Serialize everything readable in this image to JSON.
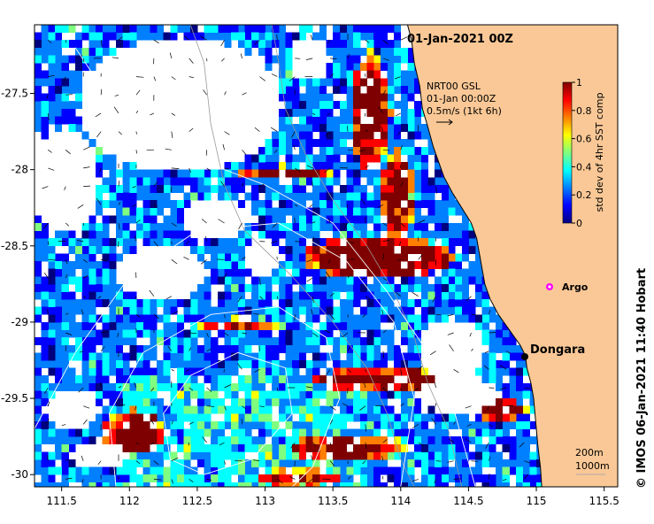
{
  "map": {
    "date_title": "01-Jan-2021 00Z",
    "product": {
      "line1": "NRT00 GSL",
      "line2": "01-Jan 00:00Z",
      "line3": "0.5m/s (1kt 6h)"
    },
    "colorbar": {
      "label": "std dev of 4hr SST comp",
      "ticks": [
        "1",
        "0.8",
        "0.6",
        "0.4",
        "0.2",
        "0"
      ],
      "range": [
        0,
        1
      ],
      "colors": [
        "#00007f",
        "#0000ff",
        "#007fff",
        "#00ffff",
        "#7fff7f",
        "#ffff00",
        "#ff7f00",
        "#ff0000",
        "#7f0000"
      ]
    },
    "places": {
      "argo_label": "Argo",
      "town_label": "Dongara"
    },
    "depth_labels": {
      "a": "200m",
      "b": "1000m"
    },
    "credit": "© IMOS 06-Jan-2021 11:40 Hobart",
    "x_axis": {
      "ticks": [
        "111.5",
        "112",
        "112.5",
        "113",
        "113.5",
        "114",
        "114.5",
        "115",
        "115.5"
      ],
      "range": [
        111.3,
        115.6
      ]
    },
    "y_axis": {
      "ticks": [
        "-27.5",
        "-28",
        "-28.5",
        "-29",
        "-29.5",
        "-30"
      ],
      "range": [
        -30.08,
        -27.05
      ]
    },
    "style": {
      "land": "#fac896",
      "missing": "#ffffff",
      "coast": "#000000",
      "argo_marker": "#ff00ff",
      "town_marker": "#000000"
    },
    "coastline": [
      [
        114.05,
        -27.05
      ],
      [
        114.08,
        -27.15
      ],
      [
        114.1,
        -27.3
      ],
      [
        114.14,
        -27.45
      ],
      [
        114.16,
        -27.6
      ],
      [
        114.2,
        -27.72
      ],
      [
        114.24,
        -27.85
      ],
      [
        114.28,
        -27.95
      ],
      [
        114.32,
        -28.05
      ],
      [
        114.38,
        -28.15
      ],
      [
        114.45,
        -28.25
      ],
      [
        114.52,
        -28.35
      ],
      [
        114.56,
        -28.45
      ],
      [
        114.58,
        -28.55
      ],
      [
        114.6,
        -28.65
      ],
      [
        114.62,
        -28.75
      ],
      [
        114.66,
        -28.85
      ],
      [
        114.72,
        -28.95
      ],
      [
        114.8,
        -29.05
      ],
      [
        114.88,
        -29.15
      ],
      [
        114.92,
        -29.22
      ],
      [
        114.93,
        -29.3
      ],
      [
        114.96,
        -29.4
      ],
      [
        114.98,
        -29.5
      ],
      [
        114.99,
        -29.6
      ],
      [
        115.0,
        -29.7
      ],
      [
        115.01,
        -29.8
      ],
      [
        115.03,
        -29.95
      ],
      [
        115.04,
        -30.08
      ]
    ],
    "argo_location": [
      115.12,
      -28.85
    ],
    "dongara_location": [
      114.93,
      -29.27
    ]
  }
}
